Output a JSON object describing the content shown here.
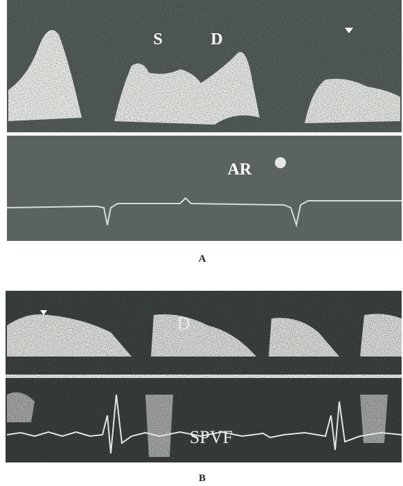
{
  "panels": [
    {
      "label": "A",
      "annotations": [
        "S",
        "D",
        "AR"
      ]
    },
    {
      "label": "B",
      "annotations": [
        "D",
        "SPVF"
      ]
    }
  ]
}
